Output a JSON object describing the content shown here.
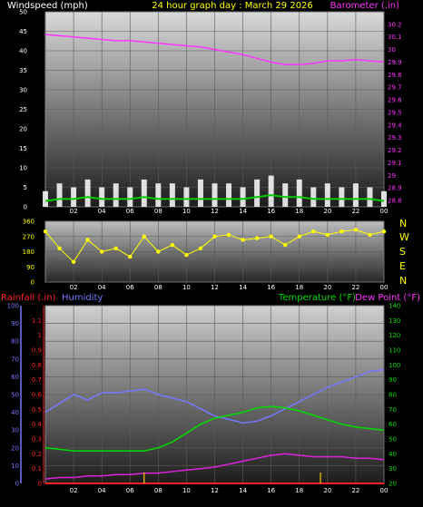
{
  "header": {
    "left_label": "Windspeed (mph)",
    "title": "24 hour graph day : March 29 2026",
    "right_label": "Barometer (.in)"
  },
  "lower_header": {
    "rainfall_label": "Rainfall (.in)",
    "humidity_label": "Humidity",
    "temperature_label": "Temperature (°F)",
    "dewpoint_label": "Dew Point (°F)"
  },
  "compass_letters": [
    "N",
    "W",
    "S",
    "E",
    "N"
  ],
  "colors": {
    "barometer": "#ff33ff",
    "wind_avg": "#00cc00",
    "wind_direction": "#ffff00",
    "rainfall": "#ff2020",
    "humidity": "#7777ff",
    "temperature": "#00dd00",
    "dewpoint": "#dd22dd",
    "rain_rate": "#ffcc00",
    "axis_text": "#ffffff"
  },
  "chart_data": [
    {
      "type": "line",
      "name": "wind-barometer",
      "title": "24 hour graph day : March 29 2026",
      "xlabel": "",
      "ylabel": "Windspeed (mph)",
      "y2label": "Barometer (.in)",
      "x_ticks": [
        "02",
        "04",
        "06",
        "08",
        "10",
        "12",
        "14",
        "16",
        "18",
        "20",
        "22",
        "00"
      ],
      "ylim": [
        0,
        50
      ],
      "y_ticks": [
        "0",
        "5",
        "10",
        "15",
        "20",
        "25",
        "30",
        "35",
        "40",
        "45",
        "50"
      ],
      "y2lim": [
        28.75,
        30.3
      ],
      "y2_ticks": [
        "28.8",
        "28.9",
        "29",
        "29.1",
        "29.2",
        "29.3",
        "29.4",
        "29.5",
        "29.6",
        "29.7",
        "29.8",
        "29.9",
        "30",
        "30.1",
        "30.2"
      ],
      "series": [
        {
          "axis": "y2",
          "x": [
            0,
            1,
            2,
            3,
            4,
            5,
            6,
            7,
            8,
            9,
            10,
            11,
            12,
            13,
            14,
            15,
            16,
            17,
            18,
            19,
            20,
            21,
            22,
            23,
            24
          ],
          "values": [
            30.12,
            30.11,
            30.1,
            30.09,
            30.08,
            30.07,
            30.07,
            30.06,
            30.05,
            30.04,
            30.03,
            30.02,
            30.0,
            29.98,
            29.96,
            29.93,
            29.9,
            29.88,
            29.88,
            29.89,
            29.91,
            29.91,
            29.92,
            29.91,
            29.9
          ]
        },
        {
          "axis": "y",
          "x": [
            0,
            1,
            2,
            3,
            4,
            5,
            6,
            7,
            8,
            9,
            10,
            11,
            12,
            13,
            14,
            15,
            16,
            17,
            18,
            19,
            20,
            21,
            22,
            23,
            24
          ],
          "values": [
            4,
            6,
            5,
            7,
            5,
            6,
            5,
            7,
            6,
            6,
            5,
            7,
            6,
            6,
            5,
            7,
            8,
            6,
            7,
            5,
            6,
            5,
            6,
            5,
            4
          ]
        },
        {
          "axis": "y",
          "x": [
            0,
            1,
            2,
            3,
            4,
            5,
            6,
            7,
            8,
            9,
            10,
            11,
            12,
            13,
            14,
            15,
            16,
            17,
            18,
            19,
            20,
            21,
            22,
            23,
            24
          ],
          "values": [
            1.5,
            2,
            2,
            2.5,
            2,
            2,
            2,
            2.5,
            2,
            2,
            2,
            2,
            2,
            2,
            2,
            2.5,
            3,
            2.5,
            2.5,
            2,
            2,
            2,
            2,
            2,
            1.5
          ]
        }
      ]
    },
    {
      "type": "scatter",
      "name": "wind-direction",
      "xlabel": "",
      "ylabel": "",
      "ylim": [
        0,
        360
      ],
      "y_ticks": [
        "0",
        "90",
        "180",
        "270",
        "360"
      ],
      "x_ticks": [
        "02",
        "04",
        "06",
        "08",
        "10",
        "12",
        "14",
        "16",
        "18",
        "20",
        "22",
        "00"
      ],
      "series": [
        {
          "x": [
            0,
            1,
            2,
            3,
            4,
            5,
            6,
            7,
            8,
            9,
            10,
            11,
            12,
            13,
            14,
            15,
            16,
            17,
            18,
            19,
            20,
            21,
            22,
            23,
            24
          ],
          "values": [
            300,
            200,
            120,
            250,
            180,
            200,
            150,
            270,
            180,
            220,
            160,
            200,
            270,
            280,
            250,
            260,
            270,
            220,
            270,
            300,
            280,
            300,
            310,
            280,
            300
          ]
        }
      ]
    },
    {
      "type": "line",
      "name": "temperature-humidity",
      "xlabel": "",
      "ylabel": "Rainfall (.in)",
      "y2label": "Temperature (°F)",
      "x_ticks": [
        "02",
        "04",
        "06",
        "08",
        "10",
        "12",
        "14",
        "16",
        "18",
        "20",
        "22",
        "00"
      ],
      "rain_ylim": [
        0,
        1.2
      ],
      "rain_ticks": [
        "0",
        "0.1",
        "0.2",
        "0.3",
        "0.4",
        "0.5",
        "0.6",
        "0.7",
        "0.8",
        "0.9",
        "1",
        "1.1"
      ],
      "humidity_ylim": [
        0,
        100
      ],
      "humidity_ticks": [
        "0",
        "10",
        "20",
        "30",
        "40",
        "50",
        "60",
        "70",
        "80",
        "90",
        "100"
      ],
      "temp_ylim": [
        20,
        140
      ],
      "temp_ticks": [
        "20",
        "30",
        "40",
        "50",
        "60",
        "70",
        "80",
        "90",
        "100",
        "110",
        "120",
        "130",
        "140"
      ],
      "series": [
        {
          "name": "Humidity",
          "axis": "humidity",
          "x": [
            0,
            1,
            2,
            3,
            4,
            5,
            6,
            7,
            8,
            9,
            10,
            11,
            12,
            13,
            14,
            15,
            16,
            17,
            18,
            19,
            20,
            21,
            22,
            23,
            24
          ],
          "values": [
            40,
            45,
            50,
            47,
            51,
            51,
            52,
            53,
            50,
            48,
            46,
            42,
            38,
            36,
            34,
            35,
            38,
            42,
            46,
            50,
            54,
            57,
            60,
            63,
            64
          ]
        },
        {
          "name": "Temperature (°F)",
          "axis": "temp",
          "x": [
            0,
            1,
            2,
            3,
            4,
            5,
            6,
            7,
            8,
            9,
            10,
            11,
            12,
            13,
            14,
            15,
            16,
            17,
            18,
            19,
            20,
            21,
            22,
            23,
            24
          ],
          "values": [
            44,
            43,
            42,
            42,
            42,
            42,
            42,
            42,
            44,
            48,
            54,
            60,
            64,
            66,
            68,
            71,
            72,
            71,
            69,
            66,
            63,
            60,
            58,
            57,
            56
          ]
        },
        {
          "name": "Dew Point (°F)",
          "axis": "temp",
          "x": [
            0,
            1,
            2,
            3,
            4,
            5,
            6,
            7,
            8,
            9,
            10,
            11,
            12,
            13,
            14,
            15,
            16,
            17,
            18,
            19,
            20,
            21,
            22,
            23,
            24
          ],
          "values": [
            23,
            24,
            24,
            25,
            25,
            26,
            26,
            27,
            27,
            28,
            29,
            30,
            31,
            33,
            35,
            37,
            39,
            40,
            39,
            38,
            38,
            38,
            37,
            37,
            36
          ]
        },
        {
          "name": "Rainfall (.in)",
          "axis": "rain",
          "x": [
            0,
            24
          ],
          "values": [
            0,
            0
          ]
        }
      ],
      "rain_rate_x": [
        7,
        19.5
      ]
    }
  ]
}
